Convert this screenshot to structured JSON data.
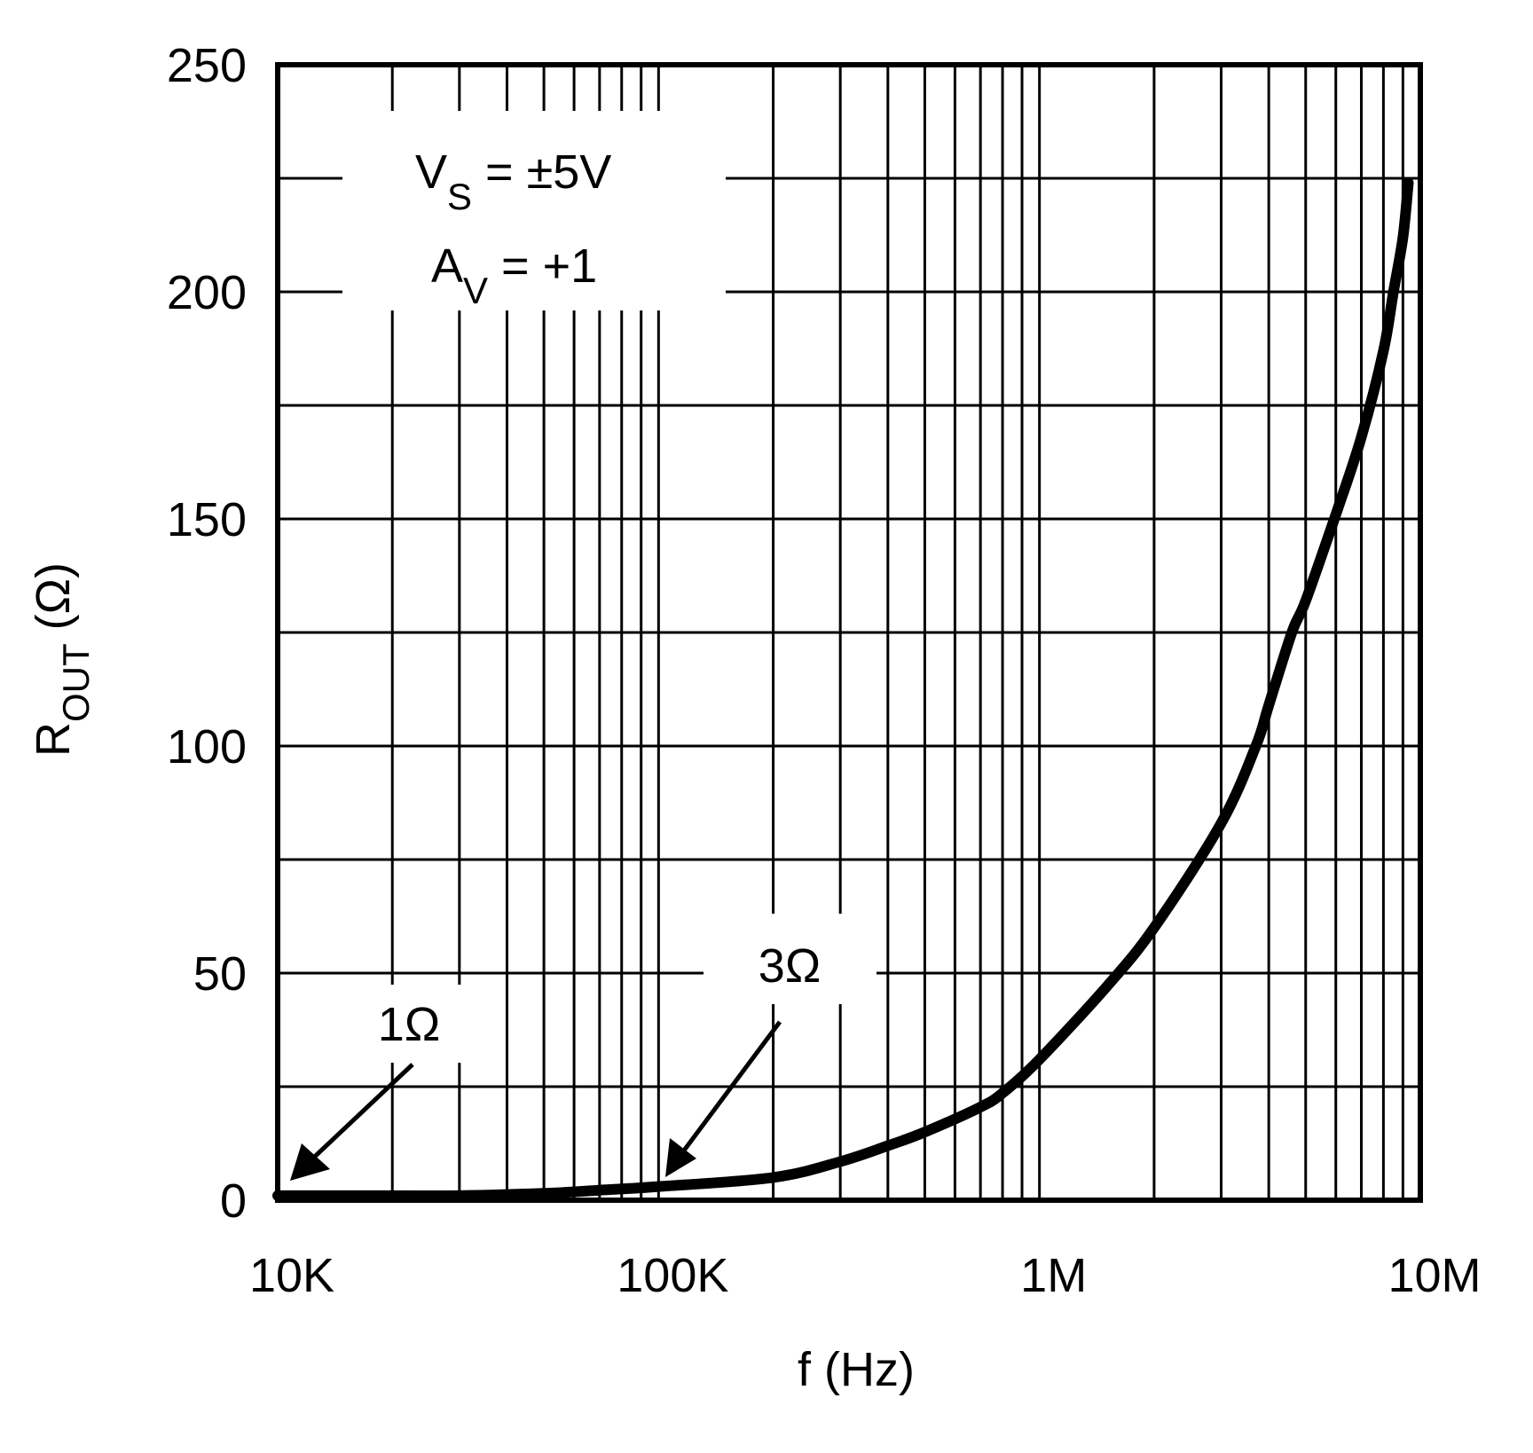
{
  "chart_data": {
    "type": "line",
    "title": "",
    "xlabel": "f (Hz)",
    "ylabel": "R_OUT (Ω)",
    "ylabel_main": "R",
    "ylabel_sub": "OUT",
    "ylabel_unit": " (Ω)",
    "xscale": "log",
    "xlim": [
      10000,
      10000000
    ],
    "ylim": [
      0,
      250
    ],
    "grid": true,
    "x_ticks": [
      10000,
      100000,
      1000000,
      10000000
    ],
    "x_tick_labels": [
      "10K",
      "100K",
      "1M",
      "10M"
    ],
    "y_ticks": [
      0,
      50,
      100,
      150,
      200,
      250
    ],
    "y_tick_labels": [
      "0",
      "50",
      "100",
      "150",
      "200",
      "250"
    ],
    "y_minor_gridlines": [
      25,
      75,
      125,
      175,
      225
    ],
    "series": [
      {
        "name": "R_OUT",
        "x": [
          10000,
          20000,
          30000,
          50000,
          70000,
          100000,
          200000,
          300000,
          400000,
          500000,
          700000,
          800000,
          1000000,
          1500000,
          2000000,
          3000000,
          3700000,
          4000000,
          4600000,
          5000000,
          6000000,
          7000000,
          8000000,
          8500000,
          9000000,
          9300000
        ],
        "values": [
          1,
          1,
          1,
          1.5,
          2.2,
          3,
          5,
          8.5,
          12,
          15,
          20.5,
          23.6,
          31,
          47,
          60,
          83,
          100,
          109,
          125,
          132,
          151,
          168,
          187,
          200,
          212,
          224
        ]
      }
    ],
    "annotations": [
      {
        "text": "V_S = ±5V",
        "main": "V",
        "sub": "S",
        "rest": " = ±5V"
      },
      {
        "text": "A_V = +1",
        "main": "A",
        "sub": "V",
        "rest": " = +1"
      },
      {
        "text": "1Ω",
        "points_to": {
          "x": 10000,
          "y": 1
        }
      },
      {
        "text": "3Ω",
        "points_to": {
          "x": 100000,
          "y": 3
        }
      }
    ],
    "legend": null
  }
}
